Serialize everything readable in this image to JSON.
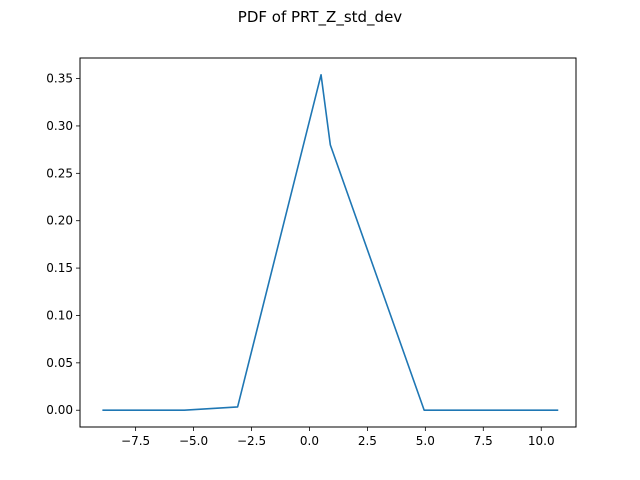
{
  "chart_data": {
    "type": "line",
    "title": "PDF of PRT_Z_std_dev",
    "xlabel": "",
    "ylabel": "",
    "xlim": [
      -9.9,
      11.5
    ],
    "ylim": [
      -0.0177,
      0.3717
    ],
    "x_ticks": [
      -7.5,
      -5.0,
      -2.5,
      0.0,
      2.5,
      5.0,
      7.5,
      10.0
    ],
    "x_tick_labels": [
      "−7.5",
      "−5.0",
      "−2.5",
      "0.0",
      "2.5",
      "5.0",
      "7.5",
      "10.0"
    ],
    "y_ticks": [
      0.0,
      0.05,
      0.1,
      0.15,
      0.2,
      0.25,
      0.3,
      0.35
    ],
    "y_tick_labels": [
      "0.00",
      "0.05",
      "0.10",
      "0.15",
      "0.20",
      "0.25",
      "0.30",
      "0.35"
    ],
    "grid": false,
    "series": [
      {
        "color": "#1f77b4",
        "x": [
          -8.9,
          -5.4,
          -3.1,
          0.5,
          0.9,
          4.95,
          10.7
        ],
        "y": [
          0.0,
          0.0,
          0.0035,
          0.354,
          0.28,
          0.0,
          0.0
        ]
      }
    ]
  }
}
